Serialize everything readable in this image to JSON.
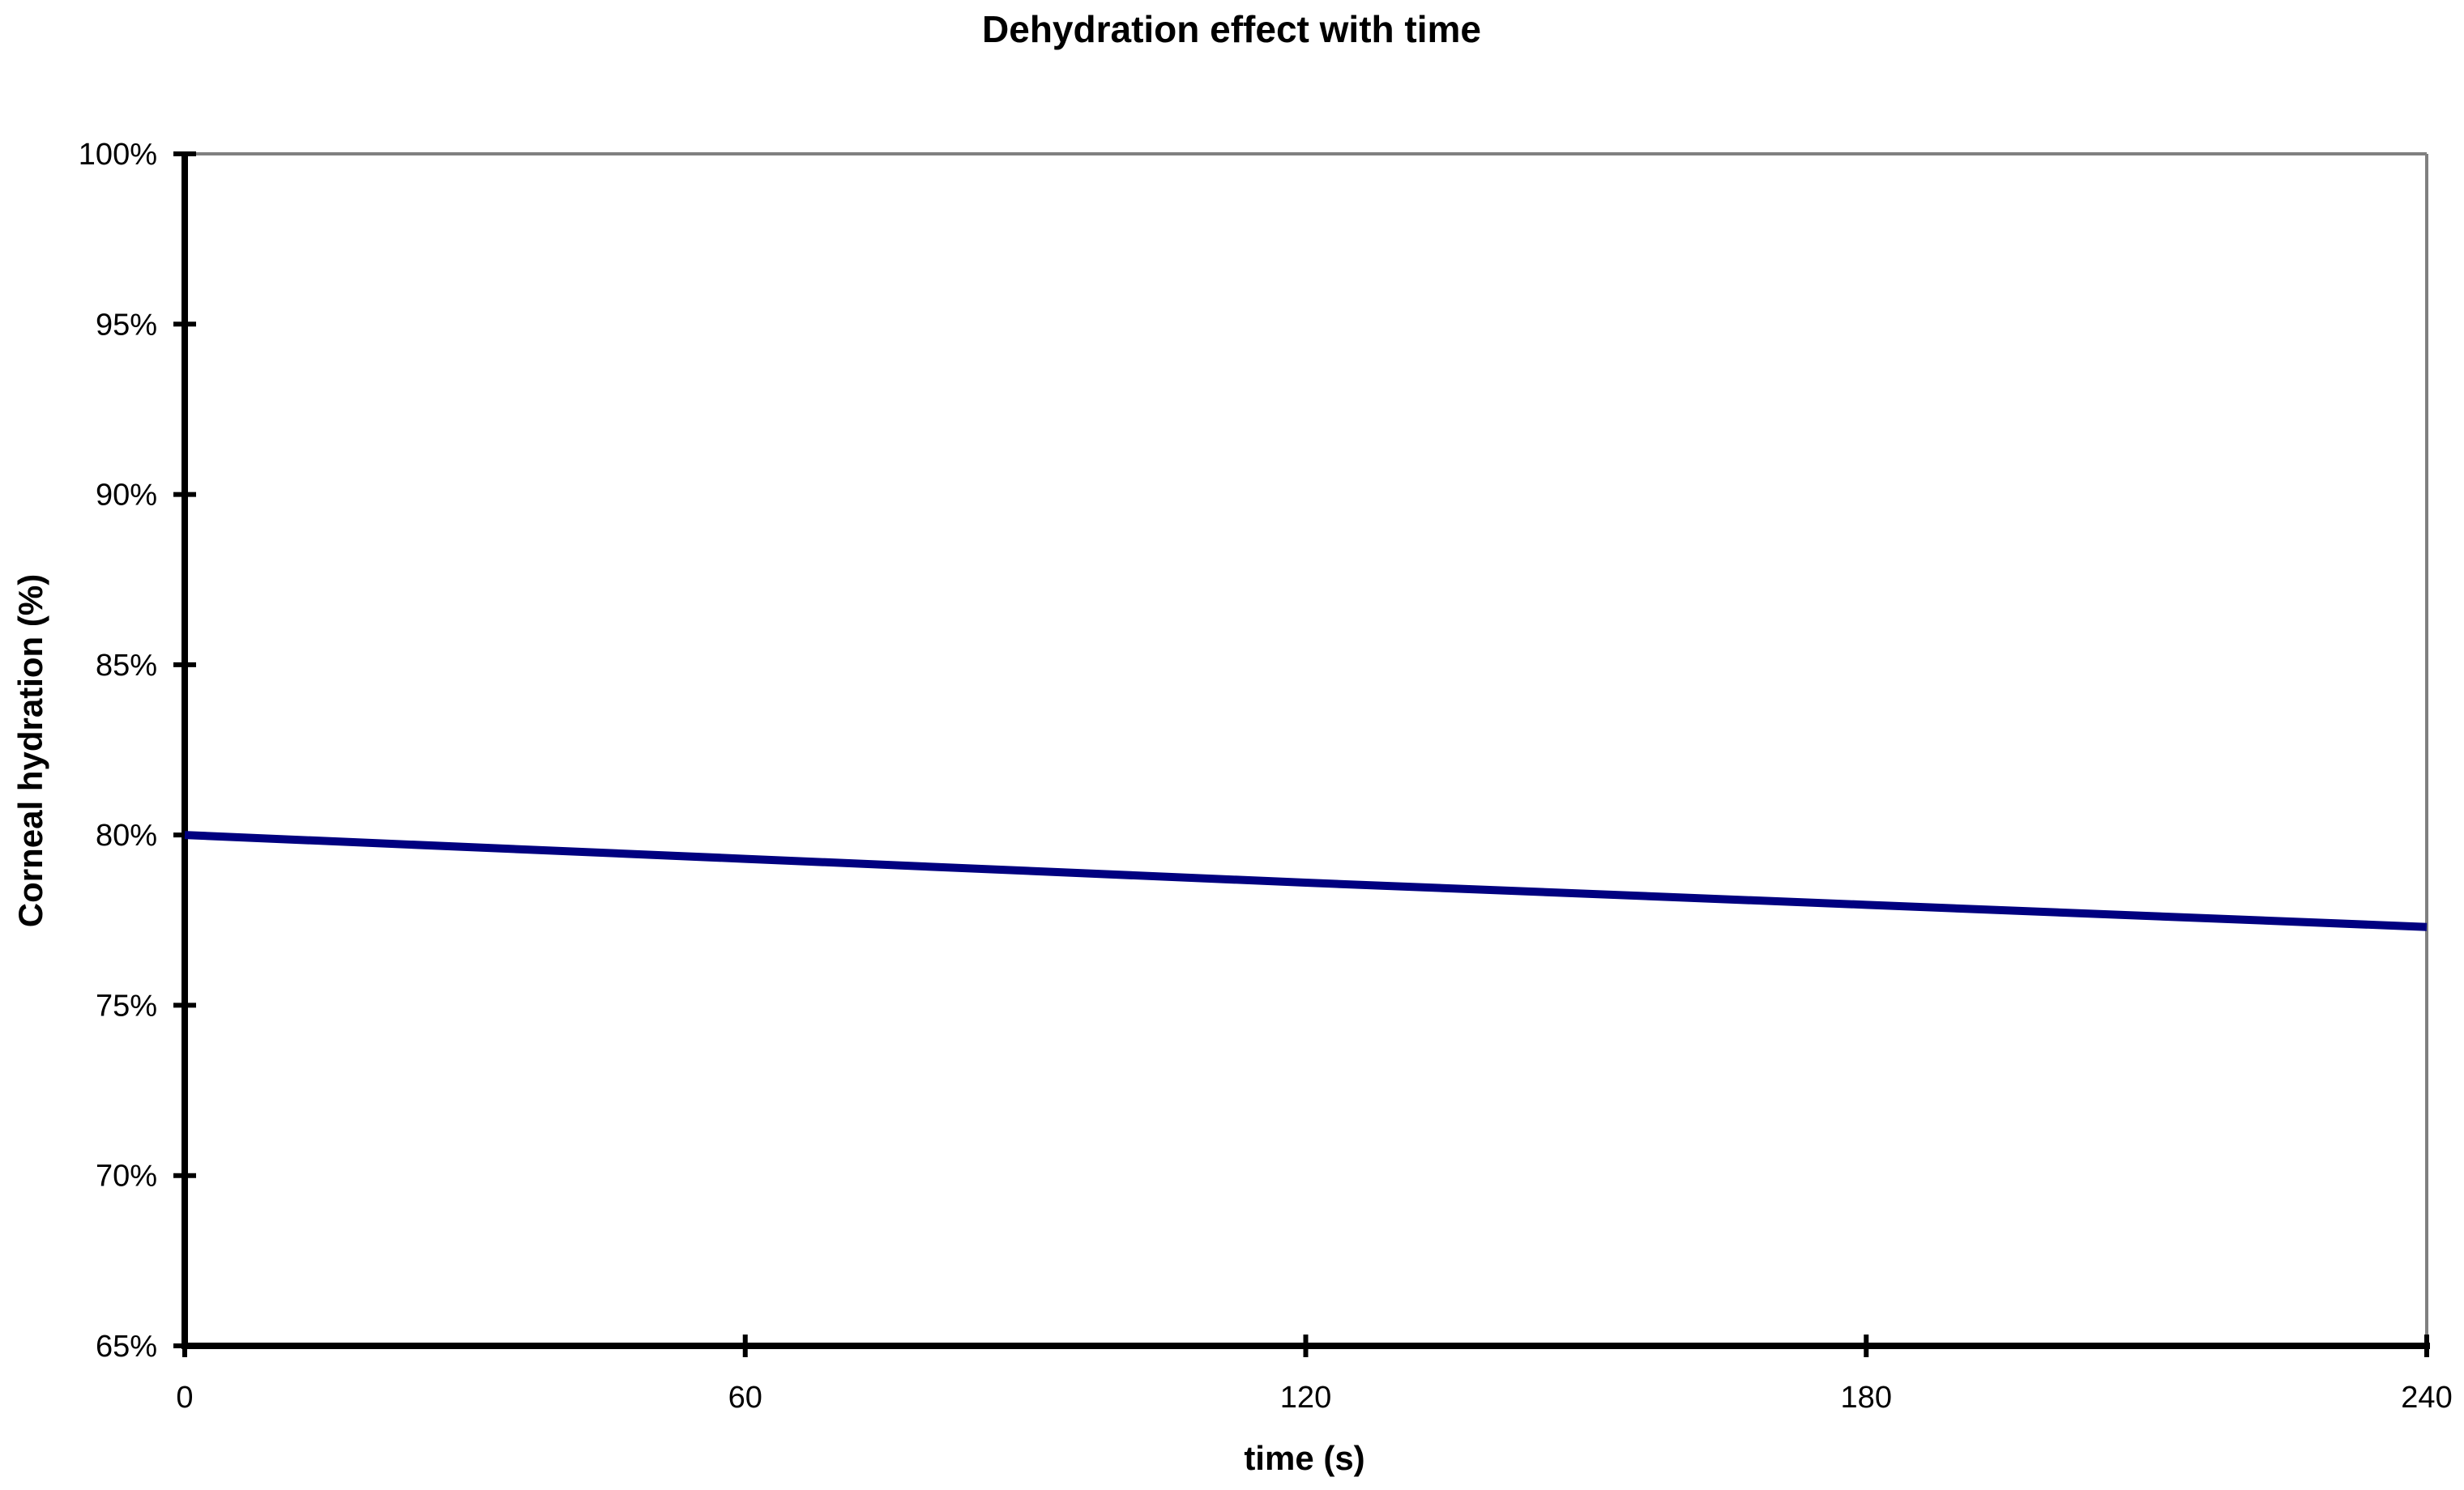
{
  "chart_data": {
    "type": "line",
    "title": "Dehydration effect with time",
    "xlabel": "time (s)",
    "ylabel": "Corneal hydration (%)",
    "xlim": [
      0,
      240
    ],
    "ylim": [
      0.65,
      1.0
    ],
    "x_ticks": [
      0,
      60,
      120,
      180,
      240
    ],
    "x_tick_labels": [
      "0",
      "60",
      "120",
      "180",
      "240"
    ],
    "y_ticks": [
      0.65,
      0.7,
      0.75,
      0.8,
      0.85,
      0.9,
      0.95,
      1.0
    ],
    "y_tick_labels": [
      "65%",
      "70%",
      "75%",
      "80%",
      "85%",
      "90%",
      "95%",
      "100%"
    ],
    "grid": false,
    "legend": "none",
    "series": [
      {
        "color": "#000080",
        "x": [
          0,
          60,
          120,
          180,
          240
        ],
        "y": [
          0.8,
          0.793,
          0.786,
          0.7795,
          0.773
        ]
      }
    ]
  }
}
